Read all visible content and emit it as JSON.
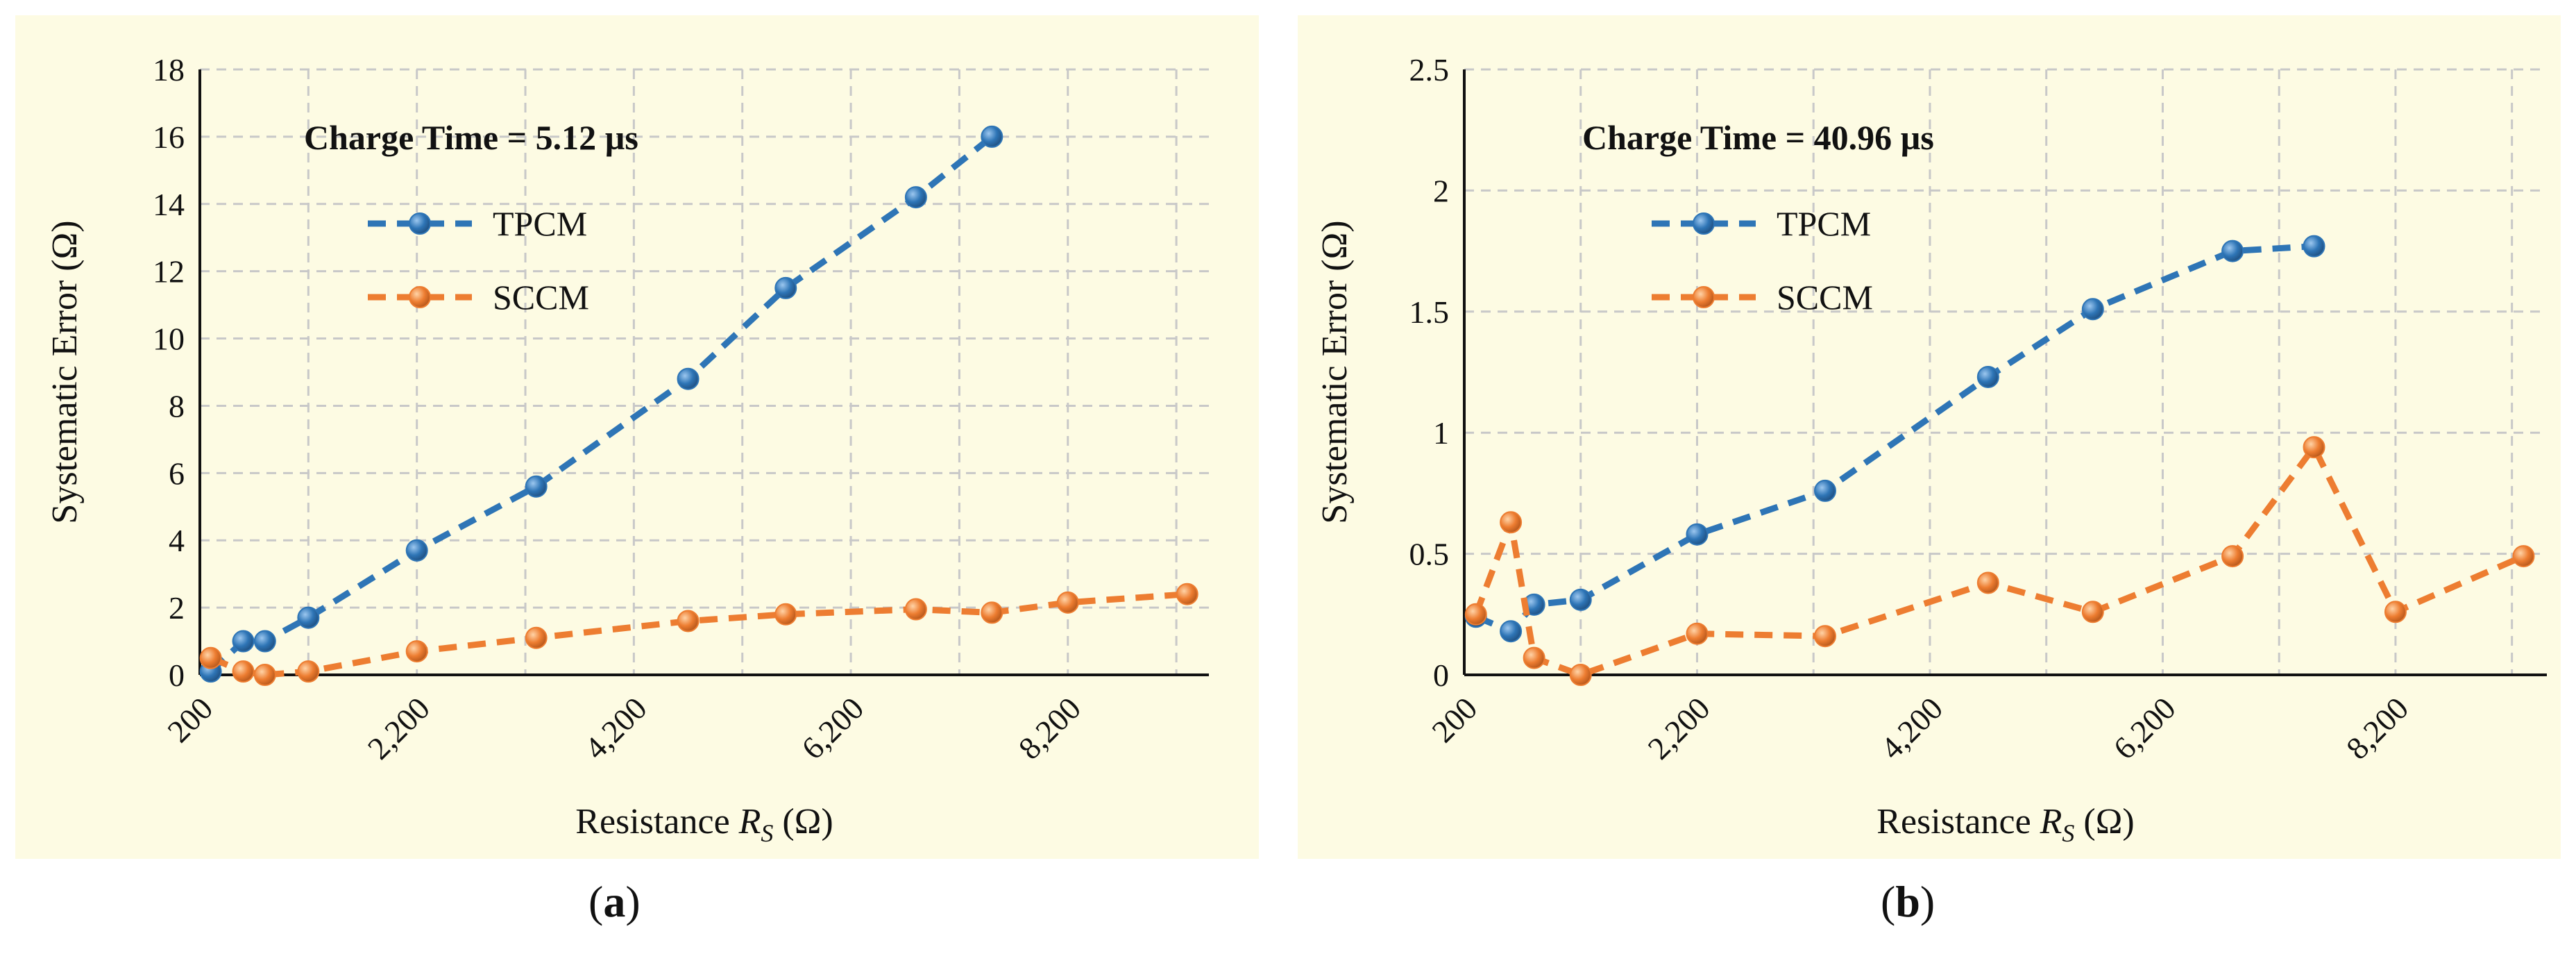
{
  "chart_data": [
    {
      "type": "line",
      "panel_label": "a",
      "annotation": "Charge Time = 5.12 µs",
      "xlabel_prefix": "Resistance",
      "xlabel_var": "R",
      "xlabel_sub": "S",
      "xlabel_unit": "(Ω)",
      "ylabel": "Systematic Error (Ω)",
      "xlim": [
        200,
        9500
      ],
      "ylim": [
        0,
        18
      ],
      "xticks": [
        200,
        2200,
        4200,
        6200,
        8200
      ],
      "xtick_labels": [
        "200",
        "2,200",
        "4,200",
        "6,200",
        "8,200"
      ],
      "yticks": [
        0,
        2,
        4,
        6,
        8,
        10,
        12,
        14,
        16,
        18
      ],
      "ytick_labels": [
        "0",
        "2",
        "4",
        "6",
        "8",
        "10",
        "12",
        "14",
        "16",
        "18"
      ],
      "legend_position": "upper-left",
      "series": [
        {
          "name": "TPCM",
          "color": "#2e75b6",
          "x": [
            300,
            600,
            800,
            1200,
            2200,
            3300,
            4700,
            5600,
            6800,
            7500
          ],
          "y": [
            0.1,
            1.0,
            1.0,
            1.7,
            3.7,
            5.6,
            8.8,
            11.5,
            14.2,
            16.0
          ]
        },
        {
          "name": "SCCM",
          "color": "#ed7d31",
          "x": [
            300,
            600,
            800,
            1200,
            2200,
            3300,
            4700,
            5600,
            6800,
            7500,
            8200,
            9300
          ],
          "y": [
            0.5,
            0.1,
            0.0,
            0.1,
            0.7,
            1.1,
            1.6,
            1.8,
            1.95,
            1.85,
            2.15,
            2.4
          ]
        }
      ]
    },
    {
      "type": "line",
      "panel_label": "b",
      "annotation": "Charge Time = 40.96 µs",
      "xlabel_prefix": "Resistance",
      "xlabel_var": "R",
      "xlabel_sub": "S",
      "xlabel_unit": "(Ω)",
      "ylabel": "Systematic Error (Ω)",
      "xlim": [
        200,
        9500
      ],
      "ylim": [
        0,
        2.5
      ],
      "xticks": [
        200,
        2200,
        4200,
        6200,
        8200
      ],
      "xtick_labels": [
        "200",
        "2,200",
        "4,200",
        "6,200",
        "8,200"
      ],
      "yticks": [
        0,
        0.5,
        1,
        1.5,
        2,
        2.5
      ],
      "ytick_labels": [
        "0",
        "0.5",
        "1",
        "1.5",
        "2",
        "2.5"
      ],
      "legend_position": "upper-left",
      "series": [
        {
          "name": "TPCM",
          "color": "#2e75b6",
          "x": [
            300,
            600,
            800,
            1200,
            2200,
            3300,
            4700,
            5600,
            6800,
            7500
          ],
          "y": [
            0.24,
            0.18,
            0.29,
            0.31,
            0.58,
            0.76,
            1.23,
            1.51,
            1.75,
            1.77
          ]
        },
        {
          "name": "SCCM",
          "color": "#ed7d31",
          "x": [
            300,
            600,
            800,
            1200,
            2200,
            3300,
            4700,
            5600,
            6800,
            7500,
            8200,
            9300
          ],
          "y": [
            0.25,
            0.63,
            0.07,
            0.0,
            0.17,
            0.16,
            0.38,
            0.26,
            0.49,
            0.94,
            0.26,
            0.49
          ]
        }
      ]
    }
  ]
}
